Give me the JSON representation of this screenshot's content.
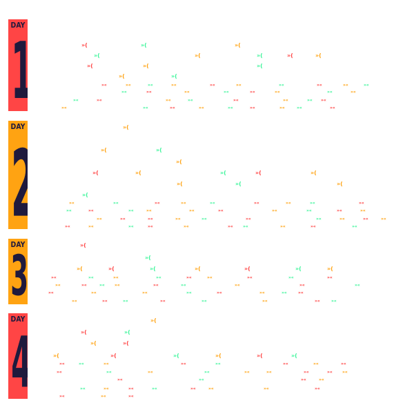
{
  "colors": {
    "red": "#ff4545",
    "orange": "#ffa312",
    "green": "#3cf59a",
    "navy": "#1f1a3d"
  },
  "days": [
    {
      "label": "DAY",
      "number": "1",
      "color": "#ff4545"
    },
    {
      "label": "DAY",
      "number": "2",
      "color": "#ffa312"
    },
    {
      "label": "DAY",
      "number": "3",
      "color": "#ffa312"
    },
    {
      "label": "DAY",
      "number": "4",
      "color": "#ff4545"
    }
  ],
  "glyphs": {
    "big": "»(",
    "small": "»«"
  }
}
